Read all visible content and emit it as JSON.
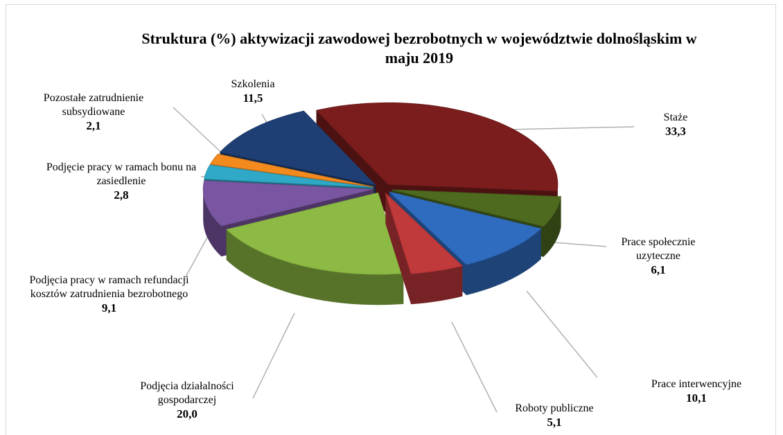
{
  "chart_data": {
    "type": "pie",
    "title": "Struktura (%) aktywizacji zawodowej bezrobotnych w województwie dolnośląskim w maju 2019",
    "categories": [
      "Staże",
      "Prace społecznie uzyteczne",
      "Prace interwencyjne",
      "Roboty publiczne",
      "Podjęcia działalności gospodarczej",
      "Podjęcia pracy w ramach refundacji kosztów zatrudnienia bezrobotnego",
      "Podjęcie pracy w ramach bonu na zasiedlenie",
      "Pozostałe zatrudnienie subsydiowane",
      "Szkolenia"
    ],
    "values": [
      33.3,
      6.1,
      10.1,
      5.1,
      20.0,
      9.1,
      2.8,
      2.1,
      11.5
    ],
    "value_labels": [
      "33,3",
      "6,1",
      "10,1",
      "5,1",
      "20,0",
      "9,1",
      "2,8",
      "2,1",
      "11,5"
    ],
    "colors": [
      "#7b1d1d",
      "#4e6a1e",
      "#2f6cc0",
      "#c0393b",
      "#8dba44",
      "#7a56a2",
      "#2fa9c7",
      "#f28a1e",
      "#1f3f74"
    ]
  }
}
